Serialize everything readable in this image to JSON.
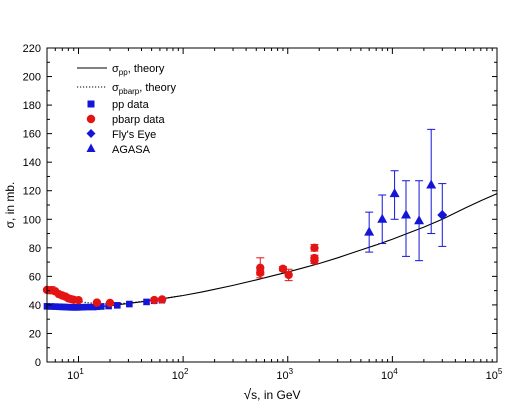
{
  "chart_data": {
    "type": "scatter",
    "xlabel": {
      "pre": "√",
      "main": "s, in GeV"
    },
    "ylabel": {
      "main": "σ",
      "rest": ", in mb."
    },
    "xscale": "log",
    "xlim": [
      5,
      100000
    ],
    "ylim": [
      0,
      220
    ],
    "xticks": [
      {
        "value": 10,
        "base": "10",
        "exp": "1"
      },
      {
        "value": 100,
        "base": "10",
        "exp": "2"
      },
      {
        "value": 1000,
        "base": "10",
        "exp": "3"
      },
      {
        "value": 10000,
        "base": "10",
        "exp": "4"
      },
      {
        "value": 100000,
        "base": "10",
        "exp": "5"
      }
    ],
    "yticks": [
      0,
      20,
      40,
      60,
      80,
      100,
      120,
      140,
      160,
      180,
      200,
      220
    ],
    "legend": {
      "placement": "top-left",
      "entries": [
        {
          "key": "pp_theory",
          "sigma": "σ",
          "sub": "pp",
          "text": ", theory",
          "marker": "solid-line"
        },
        {
          "key": "pbarp_theory",
          "sigma": "σ",
          "sub": "pbarp",
          "text": ", theory",
          "marker": "dotted-line"
        },
        {
          "key": "pp",
          "text": "pp data",
          "marker": "square"
        },
        {
          "key": "pbarp",
          "text": "pbarp data",
          "marker": "circle"
        },
        {
          "key": "flyseye",
          "text": "Fly's Eye",
          "marker": "diamond"
        },
        {
          "key": "agasa",
          "text": "AGASA",
          "marker": "triangle"
        }
      ]
    },
    "colors": {
      "blue": "#1515d8",
      "red": "#e41414",
      "line": "#000000"
    },
    "series": [
      {
        "key": "pp_theory",
        "style": "solid",
        "x": [
          5,
          6,
          7,
          8,
          10,
          12,
          15,
          20,
          25,
          30,
          40,
          50,
          60,
          80,
          100,
          150,
          200,
          300,
          500,
          700,
          1000,
          1500,
          2000,
          3000,
          5000,
          7000,
          10000,
          15000,
          20000,
          30000,
          50000,
          70000,
          100000
        ],
        "y": [
          39.0,
          38.6,
          38.4,
          38.2,
          38.3,
          38.4,
          38.8,
          39.4,
          40.3,
          41.0,
          42.2,
          43.2,
          44.0,
          45.5,
          46.6,
          49.0,
          50.9,
          53.7,
          57.5,
          60.2,
          63.0,
          66.5,
          69.0,
          73.0,
          78.5,
          82.0,
          86.0,
          91.0,
          94.5,
          100.0,
          108.0,
          113.0,
          118.0
        ]
      },
      {
        "key": "pbarp_theory",
        "style": "dotted",
        "x": [
          5,
          6,
          7,
          8,
          10,
          12,
          15,
          20,
          25,
          30,
          40,
          50,
          60,
          80,
          100
        ],
        "y": [
          49.0,
          47.0,
          45.5,
          44.3,
          42.6,
          41.6,
          41.0,
          40.8,
          41.0,
          41.3,
          42.4,
          43.3,
          44.1,
          45.5,
          46.6
        ]
      },
      {
        "key": "pp",
        "marker": "square",
        "x": [
          5,
          5.5,
          6,
          6.5,
          7,
          7.5,
          8,
          8.5,
          9,
          9.5,
          10,
          11,
          12,
          13.8,
          15,
          16.5,
          19.4,
          23.5,
          30.6,
          44.7,
          52.8,
          62.7
        ],
        "y": [
          39.0,
          38.9,
          38.8,
          38.7,
          38.6,
          38.5,
          38.4,
          38.3,
          38.3,
          38.3,
          38.3,
          38.4,
          38.5,
          38.5,
          38.7,
          38.9,
          39.2,
          39.7,
          40.6,
          42.1,
          42.9,
          43.3
        ]
      },
      {
        "key": "pbarp",
        "marker": "circle",
        "x": [
          5,
          5.5,
          6,
          6.5,
          7,
          7.5,
          8,
          8.5,
          9,
          10,
          15,
          20,
          53,
          63,
          546,
          546,
          900,
          1020,
          1800,
          1800,
          1800
        ],
        "y": [
          50.5,
          50.3,
          49.5,
          47.5,
          46.6,
          45.8,
          44.6,
          44.0,
          43.6,
          43.3,
          41.6,
          41.4,
          43.4,
          43.8,
          66.0,
          62.5,
          65.3,
          61.0,
          72.8,
          71.0,
          80.0
        ],
        "yerr": [
          0,
          2.5,
          0,
          0,
          0,
          0,
          0,
          0,
          0,
          0,
          0,
          0,
          0,
          0,
          7.0,
          1.5,
          1.5,
          4.0,
          2.0,
          2.0,
          2.3
        ]
      },
      {
        "key": "flyseye",
        "marker": "diamond",
        "x": [
          30000
        ],
        "y": [
          103
        ],
        "yerr_low": [
          22
        ],
        "yerr_high": [
          22
        ]
      },
      {
        "key": "agasa",
        "marker": "triangle",
        "x": [
          6000,
          8000,
          10500,
          13500,
          18000,
          23500
        ],
        "y": [
          91,
          100,
          118,
          103,
          99,
          124
        ],
        "yerr_low": [
          14,
          17,
          18,
          29,
          28,
          34
        ],
        "yerr_high": [
          14,
          17,
          16,
          24,
          28,
          39
        ]
      }
    ]
  }
}
